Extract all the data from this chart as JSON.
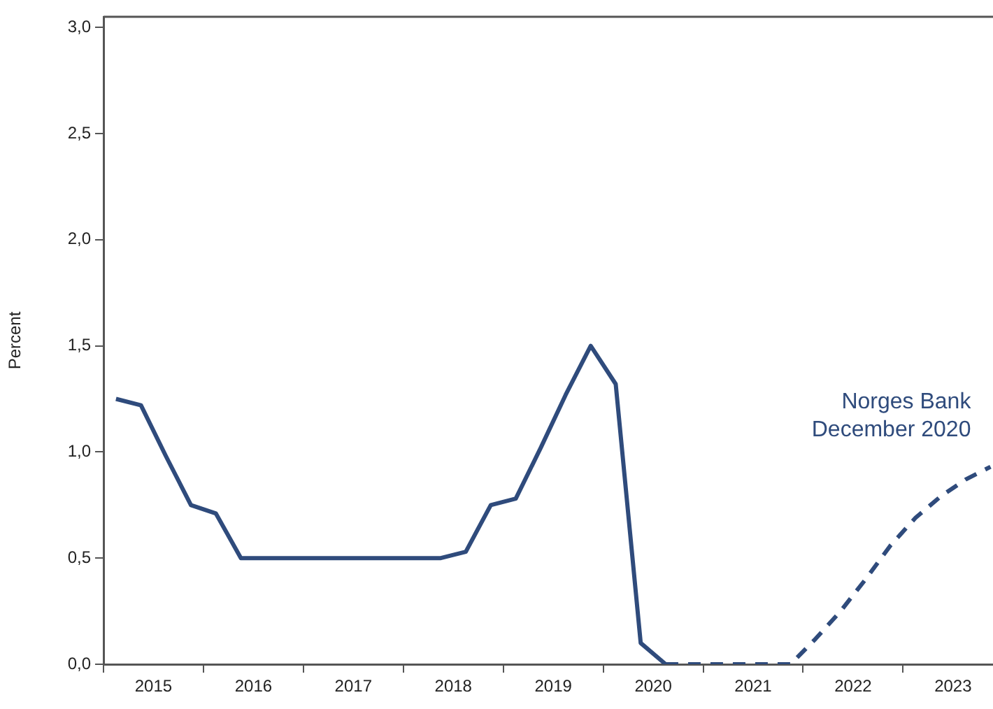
{
  "chart_data": {
    "type": "line",
    "ylabel": "Percent",
    "xlim": [
      2015,
      2023.9
    ],
    "ylim": [
      0,
      3.05
    ],
    "xticks": [
      {
        "value": 2015,
        "label": null
      },
      {
        "value": 2015.5,
        "label": "2015"
      },
      {
        "value": 2016,
        "label": null
      },
      {
        "value": 2016.5,
        "label": "2016"
      },
      {
        "value": 2017,
        "label": null
      },
      {
        "value": 2017.5,
        "label": "2017"
      },
      {
        "value": 2018,
        "label": null
      },
      {
        "value": 2018.5,
        "label": "2018"
      },
      {
        "value": 2019,
        "label": null
      },
      {
        "value": 2019.5,
        "label": "2019"
      },
      {
        "value": 2020,
        "label": null
      },
      {
        "value": 2020.5,
        "label": "2020"
      },
      {
        "value": 2021,
        "label": null
      },
      {
        "value": 2021.5,
        "label": "2021"
      },
      {
        "value": 2022,
        "label": null
      },
      {
        "value": 2022.5,
        "label": "2022"
      },
      {
        "value": 2023,
        "label": null
      },
      {
        "value": 2023.5,
        "label": "2023"
      }
    ],
    "yticks": [
      {
        "value": 0,
        "label": "0,0"
      },
      {
        "value": 0.5,
        "label": "0,5"
      },
      {
        "value": 1,
        "label": "1,0"
      },
      {
        "value": 1.5,
        "label": "1,5"
      },
      {
        "value": 2,
        "label": "2,0"
      },
      {
        "value": 2.5,
        "label": "2,5"
      },
      {
        "value": 3,
        "label": "3,0"
      }
    ],
    "grid": false,
    "legend": false,
    "marker": "none",
    "series": [
      {
        "color": "#2f4b7c",
        "line_style": "solid",
        "x": [
          2015.125,
          2015.375,
          2015.625,
          2015.875,
          2016.125,
          2016.375,
          2016.625,
          2016.875,
          2017.125,
          2017.375,
          2017.625,
          2017.875,
          2018.125,
          2018.375,
          2018.625,
          2018.875,
          2019.125,
          2019.375,
          2019.625,
          2019.875,
          2020.125,
          2020.375,
          2020.625
        ],
        "values": [
          1.25,
          1.22,
          0.98,
          0.75,
          0.71,
          0.5,
          0.5,
          0.5,
          0.5,
          0.5,
          0.5,
          0.5,
          0.5,
          0.5,
          0.53,
          0.75,
          0.78,
          1.02,
          1.27,
          1.5,
          1.32,
          0.1,
          0
        ]
      },
      {
        "name": "Norges Bank\nDecember 2020",
        "color": "#2f4b7c",
        "line_style": "dashed",
        "x": [
          2020.625,
          2020.875,
          2021.125,
          2021.375,
          2021.625,
          2021.875,
          2022.125,
          2022.375,
          2022.625,
          2022.875,
          2023.125,
          2023.375,
          2023.625,
          2023.875
        ],
        "values": [
          0,
          0,
          0,
          0,
          0,
          0,
          0.12,
          0.25,
          0.4,
          0.56,
          0.69,
          0.79,
          0.87,
          0.93
        ]
      }
    ]
  }
}
